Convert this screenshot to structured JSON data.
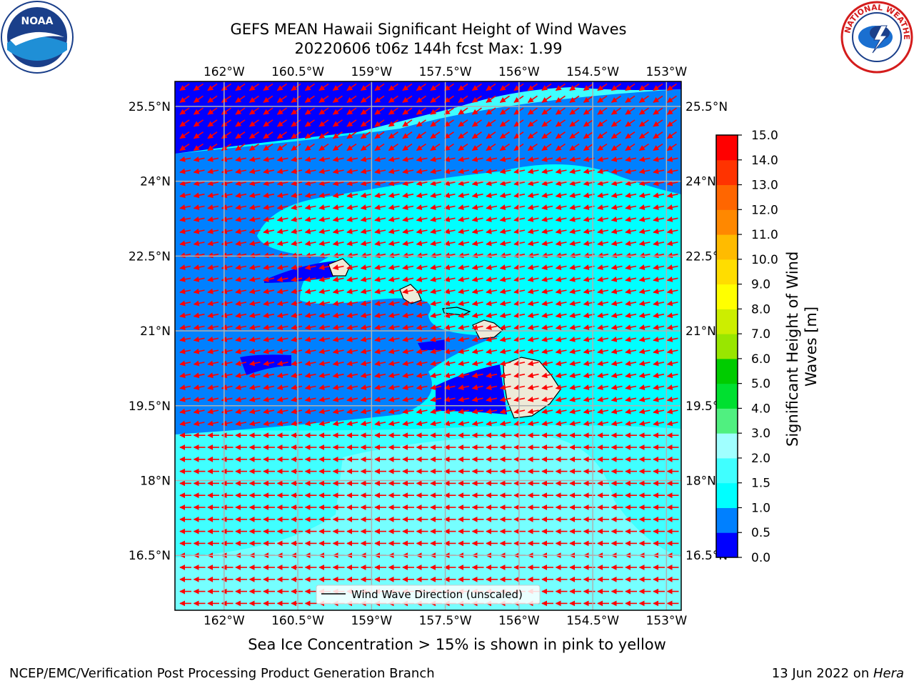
{
  "title": {
    "line1": "GEFS MEAN Hawaii Significant Height of Wind Waves",
    "line2": "20220606 t06z 144h fcst   Max: 1.99"
  },
  "map": {
    "lon_ticks": [
      "162°W",
      "160.5°W",
      "159°W",
      "157.5°W",
      "156°W",
      "154.5°W",
      "153°W"
    ],
    "lat_ticks": [
      "25.5°N",
      "24°N",
      "22.5°N",
      "21°N",
      "19.5°N",
      "18°N",
      "16.5°N"
    ],
    "lon_range": [
      -163,
      -152.7
    ],
    "lat_range": [
      15.4,
      26
    ],
    "legend": "Wind Wave Direction (unscaled)",
    "arrow_color": "#ff0000",
    "land_color": "#eeead8"
  },
  "colorbar": {
    "label_line1": "Significant Height of Wind",
    "label_line2": "Waves [m]",
    "ticks": [
      "0.0",
      "0.5",
      "1.0",
      "1.5",
      "2.0",
      "3.0",
      "4.0",
      "5.0",
      "6.0",
      "7.0",
      "8.0",
      "9.0",
      "10.0",
      "11.0",
      "12.0",
      "13.0",
      "14.0",
      "15.0"
    ],
    "colors": [
      "#0000ff",
      "#0080ff",
      "#00ffff",
      "#40ffff",
      "#a0ffff",
      "#50f080",
      "#00e030",
      "#00cc00",
      "#99e600",
      "#ccee00",
      "#ffff00",
      "#ffdd00",
      "#ffbb00",
      "#ff8800",
      "#ff6600",
      "#ff3300",
      "#ff0000"
    ]
  },
  "seaice_note": "Sea Ice Concentration > 15% is shown in pink to yellow",
  "footer": {
    "left": "NCEP/EMC/Verification Post Processing Product Generation Branch",
    "right_date": "13 Jun 2022 on ",
    "right_host": "Hera"
  },
  "logos": {
    "noaa_text": "NOAA",
    "nws_text": "NATIONAL WEATHER SERVICE"
  }
}
